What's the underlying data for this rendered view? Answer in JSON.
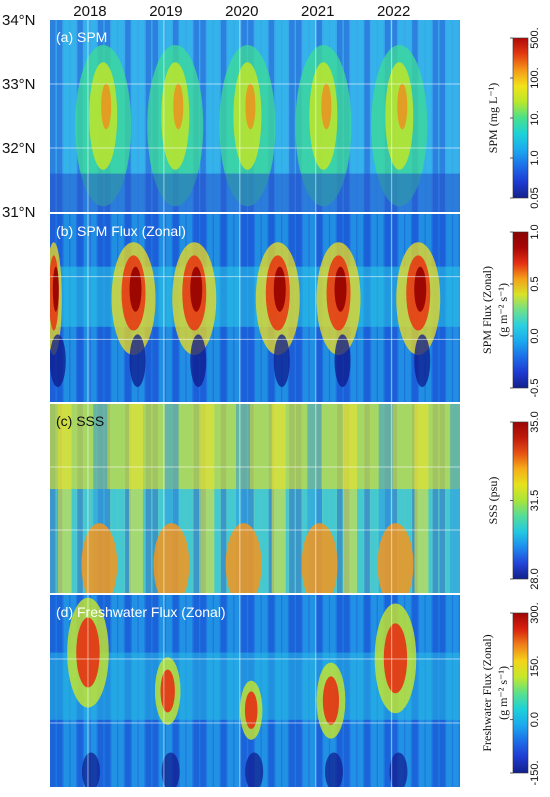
{
  "chart_data": {
    "type": "heatmap",
    "x_tick_labels": [
      "2018",
      "2019",
      "2020",
      "2021",
      "2022"
    ],
    "y_tick_labels": [
      "34°N",
      "33°N",
      "32°N",
      "31°N"
    ],
    "y_range_degN": [
      31,
      34
    ],
    "x_range_years": [
      2017.5,
      2022.9
    ],
    "panels": [
      {
        "id": "a",
        "label": "(a) SPM",
        "colorbar_label": "SPM (mg L⁻¹)",
        "colorbar_ticks": [
          "500.",
          "100.",
          "10.",
          "1.0",
          "0.05"
        ],
        "colorbar_range": [
          0.05,
          500
        ],
        "scale": "log",
        "colors": {
          "low": "#1a2fb8",
          "mid": "#18b8e8",
          "high": "#d81010"
        }
      },
      {
        "id": "b",
        "label": "(b) SPM Flux (Zonal)",
        "colorbar_label": "SPM Flux (Zonal) (g m⁻² s⁻¹)",
        "colorbar_ticks": [
          "1.0",
          "0.5",
          "0.0",
          "-0.5"
        ],
        "colorbar_range": [
          -0.5,
          1.0
        ],
        "scale": "linear",
        "colors": {
          "low": "#1a2fb8",
          "mid": "#18b8e8",
          "high": "#d81010"
        }
      },
      {
        "id": "c",
        "label": "(c) SSS",
        "colorbar_label": "SSS (psu)",
        "colorbar_ticks": [
          "35.0",
          "31.5",
          "28.0"
        ],
        "colorbar_range": [
          28.0,
          35.0
        ],
        "scale": "linear",
        "colors": {
          "low": "#1a2fb8",
          "mid": "#b8e820",
          "high": "#d81010"
        }
      },
      {
        "id": "d",
        "label": "(d) Freshwater Flux (Zonal)",
        "colorbar_label": "Freshwater Flux (Zonal) (g m⁻² s⁻¹)",
        "colorbar_ticks": [
          "300.",
          "150.",
          "0.0",
          "-150."
        ],
        "colorbar_range": [
          -150,
          300
        ],
        "scale": "linear",
        "colors": {
          "low": "#1a2fb8",
          "mid": "#18b8e8",
          "high": "#d81010"
        }
      }
    ],
    "grid": true,
    "legend": "colorbars-right"
  }
}
